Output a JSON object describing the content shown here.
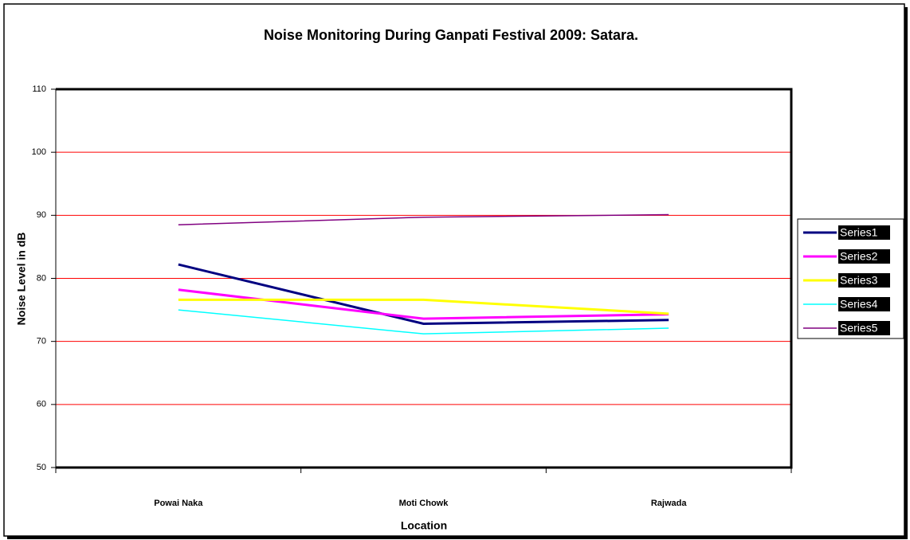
{
  "chart_data": {
    "type": "line",
    "title": "Noise Monitoring During Ganpati Festival 2009: Satara.",
    "x_label": "Location",
    "y_label": "Noise Level in dB",
    "categories": [
      "Powai Naka",
      "Moti Chowk",
      "Rajwada"
    ],
    "series": [
      {
        "name": "Series1",
        "color": "#000080",
        "line_width": 3,
        "values": [
          82.2,
          72.8,
          73.4
        ]
      },
      {
        "name": "Series2",
        "color": "#ff00ff",
        "line_width": 3,
        "values": [
          78.2,
          73.6,
          74.3
        ]
      },
      {
        "name": "Series3",
        "color": "#ffff00",
        "line_width": 3,
        "values": [
          76.6,
          76.6,
          74.4
        ]
      },
      {
        "name": "Series4",
        "color": "#00ffff",
        "line_width": 1.5,
        "values": [
          75.0,
          71.2,
          72.1
        ]
      },
      {
        "name": "Series5",
        "color": "#800080",
        "line_width": 1.5,
        "values": [
          88.5,
          89.7,
          90.1
        ]
      }
    ],
    "ylim": [
      50,
      110
    ],
    "yticks": [
      50,
      60,
      70,
      80,
      90,
      100,
      110
    ],
    "grid": true,
    "grid_color": "#ff0000",
    "legend": "right"
  }
}
